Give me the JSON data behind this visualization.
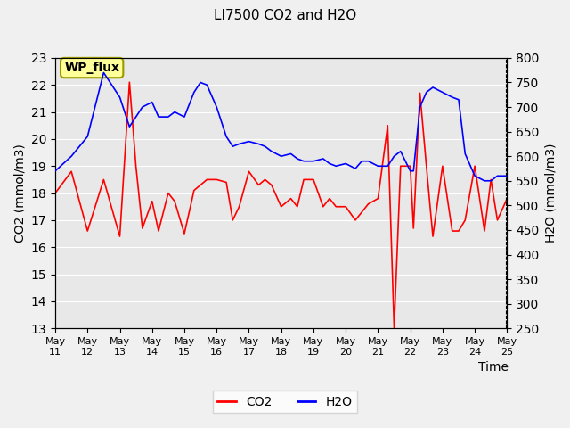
{
  "title": "LI7500 CO2 and H2O",
  "xlabel": "Time",
  "ylabel_left": "CO2 (mmol/m3)",
  "ylabel_right": "H2O (mmol/m3)",
  "co2_ylim": [
    13.0,
    23.0
  ],
  "h2o_ylim": [
    250,
    800
  ],
  "co2_yticks": [
    13.0,
    14.0,
    15.0,
    16.0,
    17.0,
    18.0,
    19.0,
    20.0,
    21.0,
    22.0,
    23.0
  ],
  "h2o_yticks": [
    250,
    300,
    350,
    400,
    450,
    500,
    550,
    600,
    650,
    700,
    750,
    800
  ],
  "xtick_labels": [
    "May 11",
    "May 12",
    "May 13",
    "May 14",
    "May 15",
    "May 16",
    "May 17",
    "May 18",
    "May 19",
    "May 20",
    "May 21",
    "May 22",
    "May 23",
    "May 24",
    "May 25"
  ],
  "background_color": "#e0e0e0",
  "plot_bg_color": "#e8e8e8",
  "co2_color": "#ff0000",
  "h2o_color": "#0000ff",
  "annotation_text": "WP_flux",
  "annotation_bbox_color": "#ffff99",
  "annotation_bbox_edge": "#999900",
  "legend_co2_label": "CO2",
  "legend_h2o_label": "H2O",
  "co2_x": [
    0,
    0.5,
    1.0,
    1.5,
    2.0,
    2.3,
    2.5,
    2.7,
    3.0,
    3.2,
    3.5,
    3.7,
    4.0,
    4.3,
    4.5,
    4.7,
    5.0,
    5.3,
    5.5,
    5.7,
    6.0,
    6.3,
    6.5,
    6.7,
    7.0,
    7.3,
    7.5,
    7.7,
    8.0,
    8.3,
    8.5,
    8.7,
    9.0,
    9.3,
    9.5,
    9.7,
    10.0,
    10.3,
    10.5,
    10.7,
    11.0,
    11.1,
    11.3,
    11.5,
    11.7,
    12.0,
    12.3,
    12.5,
    12.7,
    13.0,
    13.3,
    13.5,
    13.7,
    14.0
  ],
  "co2_y": [
    18.0,
    18.8,
    16.6,
    18.5,
    16.4,
    22.1,
    19.0,
    16.7,
    17.7,
    16.6,
    18.0,
    17.7,
    16.5,
    18.1,
    18.3,
    18.5,
    18.5,
    18.4,
    17.0,
    17.5,
    18.8,
    18.3,
    18.5,
    18.3,
    17.5,
    17.8,
    17.5,
    18.5,
    18.5,
    17.5,
    17.8,
    17.5,
    17.5,
    17.0,
    17.3,
    17.6,
    17.8,
    20.5,
    13.0,
    19.0,
    19.0,
    16.7,
    21.7,
    19.0,
    16.4,
    19.0,
    16.6,
    16.6,
    17.0,
    19.0,
    16.6,
    18.5,
    17.0,
    17.8
  ],
  "h2o_x": [
    0,
    0.5,
    1.0,
    1.5,
    2.0,
    2.3,
    2.5,
    2.7,
    3.0,
    3.2,
    3.5,
    3.7,
    4.0,
    4.3,
    4.5,
    4.7,
    5.0,
    5.3,
    5.5,
    5.7,
    6.0,
    6.3,
    6.5,
    6.7,
    7.0,
    7.3,
    7.5,
    7.7,
    8.0,
    8.3,
    8.5,
    8.7,
    9.0,
    9.3,
    9.5,
    9.7,
    10.0,
    10.3,
    10.5,
    10.7,
    11.0,
    11.1,
    11.3,
    11.5,
    11.7,
    12.0,
    12.3,
    12.5,
    12.7,
    13.0,
    13.3,
    13.5,
    13.7,
    14.0
  ],
  "h2o_y": [
    570,
    600,
    640,
    770,
    720,
    660,
    680,
    700,
    710,
    680,
    680,
    690,
    680,
    730,
    750,
    745,
    700,
    640,
    620,
    625,
    630,
    625,
    620,
    610,
    600,
    605,
    595,
    590,
    590,
    595,
    585,
    580,
    585,
    575,
    590,
    590,
    580,
    580,
    600,
    610,
    570,
    570,
    700,
    730,
    740,
    730,
    720,
    715,
    605,
    560,
    550,
    550,
    560,
    560
  ]
}
